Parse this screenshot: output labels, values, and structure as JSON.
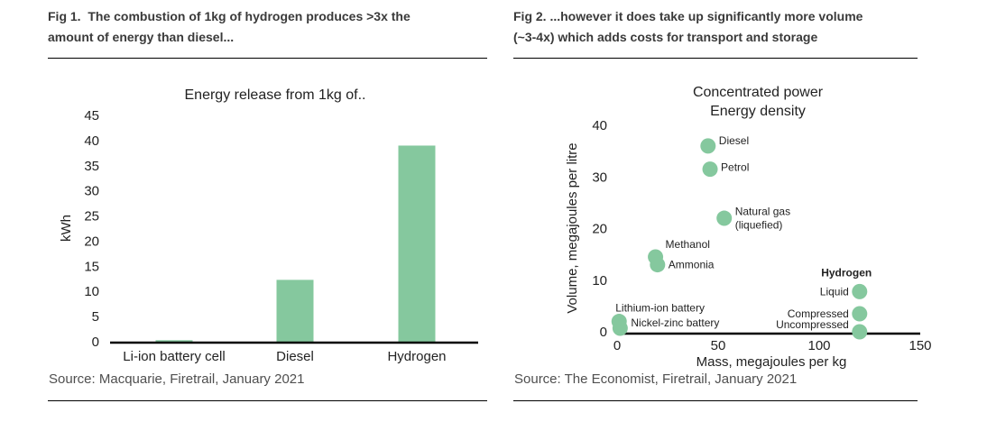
{
  "colors": {
    "accent_green": "#85c89e",
    "header_text": "#3a3a3a",
    "axis_black": "#000000",
    "source_text": "#4f4f4f",
    "hydrogen_label_gray": "#7f7f7f"
  },
  "fig1": {
    "header_line1": "Fig 1.  The combustion of 1kg of hydrogen produces >3x the",
    "header_line2": "amount of energy than diesel...",
    "source": "Source: Macquarie, Firetrail, January 2021"
  },
  "fig2": {
    "header_line1": "Fig 2. ...however it does take up significantly more volume",
    "header_line2": "(~3-4x) which adds costs for transport and storage",
    "source": "Source: The Economist, Firetrail, January 2021"
  },
  "chart_data": [
    {
      "type": "bar",
      "title": "Energy release from 1kg of..",
      "xlabel": "",
      "ylabel": "kWh",
      "categories": [
        "Li-ion battery cell",
        "Diesel",
        "Hydrogen"
      ],
      "values": [
        0.3,
        12.3,
        39
      ],
      "ylim": [
        0,
        45
      ],
      "ytick_step": 5,
      "grid": false,
      "legend": "none",
      "bar_color": "#85c89e"
    },
    {
      "type": "scatter",
      "title_lines": [
        "Concentrated power",
        "Energy density"
      ],
      "xlabel": "Mass, megajoules per kg",
      "ylabel": "Volume, megajoules per litre",
      "xlim": [
        0,
        150
      ],
      "xticks": [
        0,
        50,
        100,
        150
      ],
      "ylim": [
        0,
        40
      ],
      "yticks": [
        0,
        10,
        20,
        30,
        40
      ],
      "grid": false,
      "legend": "none",
      "dot_color": "#85c89e",
      "group_label": {
        "text": "Hydrogen",
        "x": 113.5,
        "y": 10.7,
        "color": "#7f7f7f"
      },
      "points": [
        {
          "label": "Diesel",
          "x": 45,
          "y": 36,
          "side": "right",
          "dy": -6
        },
        {
          "label": "Petrol",
          "x": 46,
          "y": 31.5,
          "side": "right",
          "dy": -2
        },
        {
          "label": "Natural gas\n(liquefied)",
          "x": 53,
          "y": 22,
          "side": "right",
          "dy": 0
        },
        {
          "label": "Methanol",
          "x": 19,
          "y": 14.5,
          "side": "above-right",
          "dy": 0
        },
        {
          "label": "Ammonia",
          "x": 20,
          "y": 13,
          "side": "right",
          "dy": 0
        },
        {
          "label": "Lithium-ion battery",
          "x": 1,
          "y": 2,
          "side": "above",
          "dy": 0
        },
        {
          "label": "Nickel-zinc battery",
          "x": 1.5,
          "y": 0.7,
          "side": "right",
          "dy": -6
        },
        {
          "label": "Liquid",
          "x": 120,
          "y": 7.8,
          "side": "left",
          "dy": 0
        },
        {
          "label": "Compressed",
          "x": 120,
          "y": 3.5,
          "side": "left",
          "dy": 0
        },
        {
          "label": "Uncompressed",
          "x": 120,
          "y": 0,
          "side": "left",
          "dy": -8
        }
      ]
    }
  ]
}
